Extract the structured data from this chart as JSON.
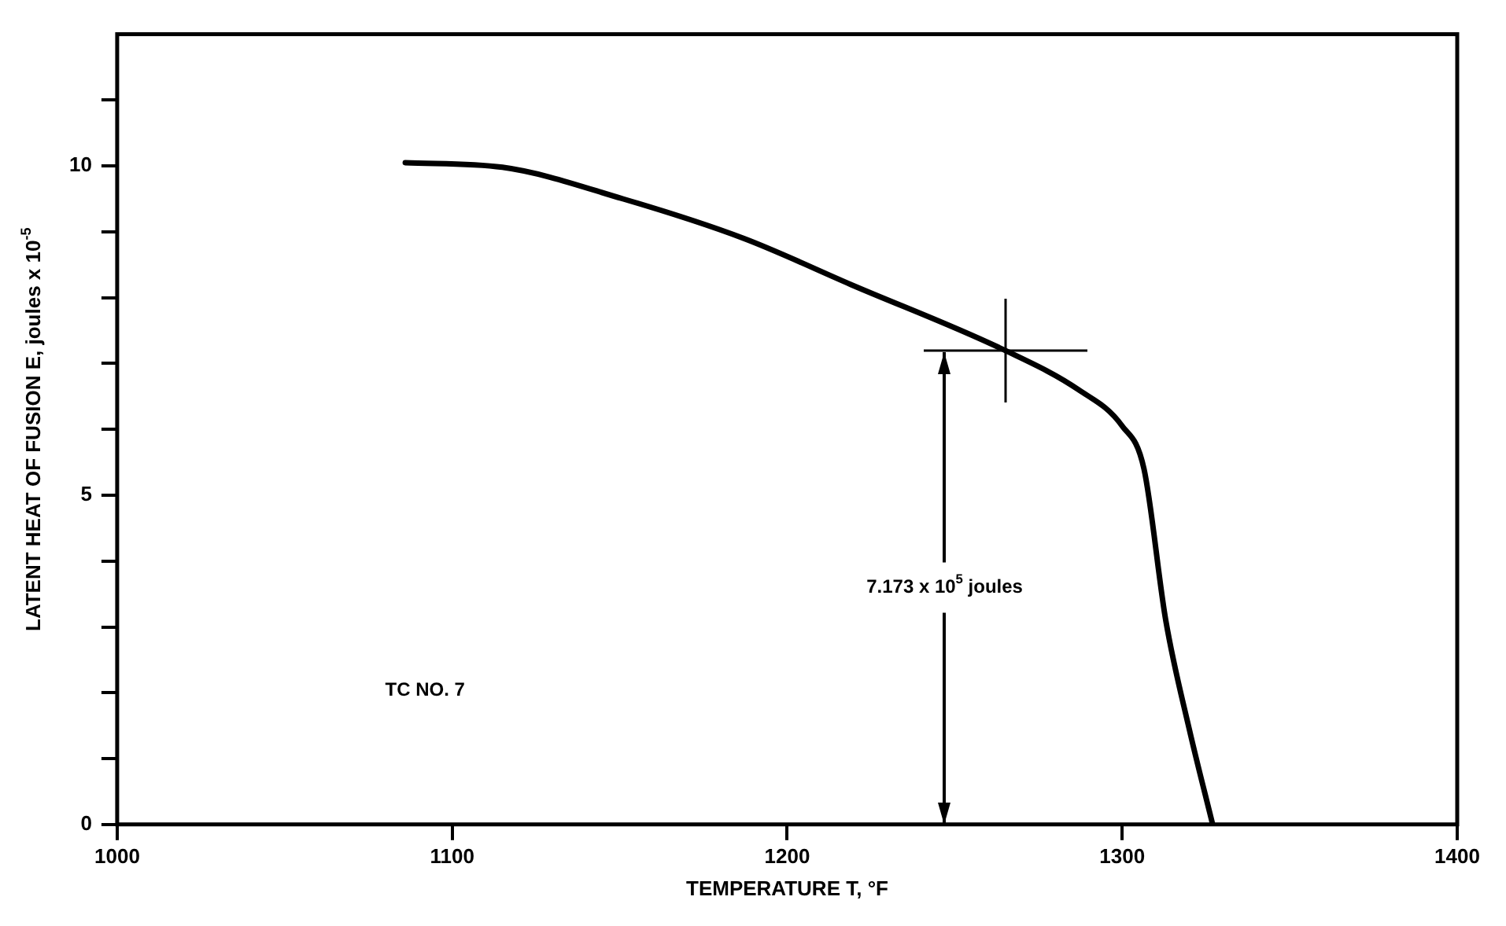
{
  "chart_data": {
    "type": "line",
    "xlabel": "TEMPERATURE T, °F",
    "ylabel": "LATENT HEAT OF FUSION E, joules x 10$^{-5}$",
    "xlim": [
      1000,
      1400
    ],
    "xticks": [
      1000,
      1100,
      1200,
      1300,
      1400
    ],
    "ylim": [
      0,
      12
    ],
    "yticks": [
      0,
      {
        "value": 1,
        "label": null
      },
      {
        "value": 2,
        "label": null
      },
      {
        "value": 3,
        "label": null
      },
      {
        "value": 4,
        "label": null
      },
      5,
      {
        "value": 6,
        "label": null
      },
      {
        "value": 7,
        "label": null
      },
      {
        "value": 8,
        "label": null
      },
      {
        "value": 9,
        "label": null
      },
      10,
      {
        "value": 11,
        "label": null
      }
    ],
    "grid": false,
    "legend": false,
    "marker": "none",
    "line_style": "solid",
    "series": [
      {
        "color": "#000000",
        "x": [
          1086,
          1115,
          1151,
          1187,
          1219,
          1265,
          1287,
          1300,
          1306.5,
          1313,
          1320,
          1327
        ],
        "values": [
          10.05,
          9.98,
          9.5,
          8.9,
          8.2,
          7.2,
          6.6,
          6.05,
          5.4,
          3.1,
          1.45,
          0
        ]
      }
    ],
    "annotations": [
      "7.173 x 10$^{5}$ joules",
      "TC NO. 7"
    ]
  }
}
